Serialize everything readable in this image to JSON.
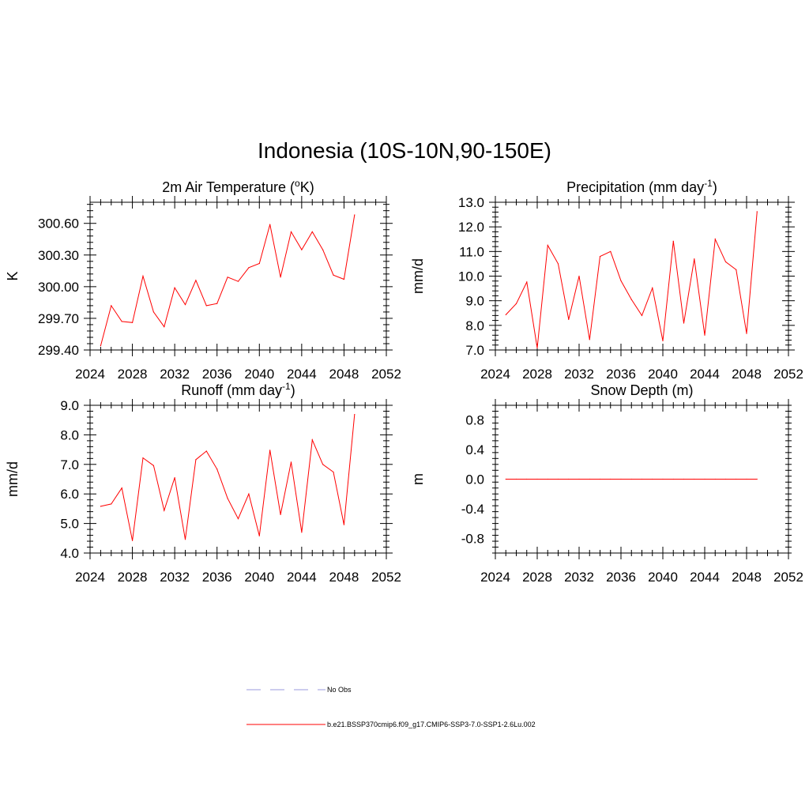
{
  "figure": {
    "title": "Indonesia (10S-10N,90-150E)"
  },
  "legend": {
    "items": [
      {
        "label": "No Obs",
        "color": "#9999dd",
        "style": "dashed"
      },
      {
        "label": "b.e21.BSSP370cmip6.f09_g17.CMIP6-SSP3-7.0-SSP1-2.6Lu.002",
        "color": "#ff0000",
        "style": "solid"
      }
    ]
  },
  "chart_data": [
    {
      "type": "line",
      "title": "2m Air Temperature (",
      "title_sup": "o",
      "title_tail": "K)",
      "title_tail_sup": "",
      "title_end": "",
      "ylabel": "K",
      "xlim": [
        2024,
        2052
      ],
      "ylim": [
        299.4,
        300.8
      ],
      "xticks": [
        "2024",
        "2028",
        "2032",
        "2036",
        "2040",
        "2044",
        "2048",
        "2052"
      ],
      "yticks": [
        "299.40",
        "299.70",
        "300.00",
        "300.30",
        "300.60"
      ],
      "ytick_values": [
        299.4,
        299.7,
        300.0,
        300.3,
        300.6
      ],
      "color": "#ff0000",
      "x": [
        2025,
        2026,
        2027,
        2028,
        2029,
        2030,
        2031,
        2032,
        2033,
        2034,
        2035,
        2036,
        2037,
        2038,
        2039,
        2040,
        2041,
        2042,
        2043,
        2044,
        2045,
        2046,
        2047,
        2048,
        2049
      ],
      "y": [
        299.44,
        299.82,
        299.67,
        299.66,
        300.1,
        299.76,
        299.62,
        299.99,
        299.83,
        300.06,
        299.82,
        299.84,
        300.09,
        300.05,
        300.18,
        300.22,
        300.59,
        300.09,
        300.52,
        300.35,
        300.52,
        300.35,
        300.11,
        300.07,
        300.68
      ]
    },
    {
      "type": "line",
      "title": "Precipitation (mm day",
      "title_sup": "-1",
      "title_tail": ")",
      "title_tail_sup": "",
      "title_end": "",
      "ylabel": "mm/d",
      "xlim": [
        2024,
        2052
      ],
      "ylim": [
        7.0,
        13.0
      ],
      "xticks": [
        "2024",
        "2028",
        "2032",
        "2036",
        "2040",
        "2044",
        "2048",
        "2052"
      ],
      "yticks": [
        "7.0",
        "8.0",
        "9.0",
        "10.0",
        "11.0",
        "12.0",
        "13.0"
      ],
      "ytick_values": [
        7,
        8,
        9,
        10,
        11,
        12,
        13
      ],
      "color": "#ff0000",
      "x": [
        2025,
        2026,
        2027,
        2028,
        2029,
        2030,
        2031,
        2032,
        2033,
        2034,
        2035,
        2036,
        2037,
        2038,
        2039,
        2040,
        2041,
        2042,
        2043,
        2044,
        2045,
        2046,
        2047,
        2048,
        2049
      ],
      "y": [
        8.43,
        8.88,
        9.76,
        7.08,
        11.25,
        10.5,
        8.24,
        10.0,
        7.42,
        10.8,
        11.0,
        9.81,
        9.05,
        8.4,
        9.52,
        7.37,
        11.42,
        8.09,
        10.7,
        7.6,
        11.5,
        10.58,
        10.26,
        7.67,
        12.62
      ]
    },
    {
      "type": "line",
      "title": "Runoff (mm day",
      "title_sup": "-1",
      "title_tail": ")",
      "title_tail_sup": "",
      "title_end": "",
      "ylabel": "mm/d",
      "xlim": [
        2024,
        2052
      ],
      "ylim": [
        4.0,
        9.0
      ],
      "xticks": [
        "2024",
        "2028",
        "2032",
        "2036",
        "2040",
        "2044",
        "2048",
        "2052"
      ],
      "yticks": [
        "4.0",
        "5.0",
        "6.0",
        "7.0",
        "8.0",
        "9.0"
      ],
      "ytick_values": [
        4,
        5,
        6,
        7,
        8,
        9
      ],
      "color": "#ff0000",
      "x": [
        2025,
        2026,
        2027,
        2028,
        2029,
        2030,
        2031,
        2032,
        2033,
        2034,
        2035,
        2036,
        2037,
        2038,
        2039,
        2040,
        2041,
        2042,
        2043,
        2044,
        2045,
        2046,
        2047,
        2048,
        2049
      ],
      "y": [
        5.58,
        5.66,
        6.2,
        4.42,
        7.22,
        6.96,
        5.44,
        6.55,
        4.46,
        7.16,
        7.45,
        6.84,
        5.85,
        5.16,
        6.0,
        4.58,
        7.48,
        5.3,
        7.08,
        4.7,
        7.83,
        7.0,
        6.74,
        4.96,
        8.69
      ]
    },
    {
      "type": "line",
      "title": "Snow Depth (m)",
      "title_sup": "",
      "title_tail": "",
      "title_tail_sup": "",
      "title_end": "",
      "ylabel": "m",
      "xlim": [
        2024,
        2052
      ],
      "ylim": [
        -1.0,
        1.0
      ],
      "xticks": [
        "2024",
        "2028",
        "2032",
        "2036",
        "2040",
        "2044",
        "2048",
        "2052"
      ],
      "yticks": [
        "-0.8",
        "-0.4",
        "0.0",
        "0.4",
        "0.8"
      ],
      "ytick_values": [
        -0.8,
        -0.4,
        0.0,
        0.4,
        0.8
      ],
      "color": "#ff0000",
      "x": [
        2025,
        2026,
        2027,
        2028,
        2029,
        2030,
        2031,
        2032,
        2033,
        2034,
        2035,
        2036,
        2037,
        2038,
        2039,
        2040,
        2041,
        2042,
        2043,
        2044,
        2045,
        2046,
        2047,
        2048,
        2049
      ],
      "y": [
        0,
        0,
        0,
        0,
        0,
        0,
        0,
        0,
        0,
        0,
        0,
        0,
        0,
        0,
        0,
        0,
        0,
        0,
        0,
        0,
        0,
        0,
        0,
        0,
        0
      ]
    }
  ]
}
